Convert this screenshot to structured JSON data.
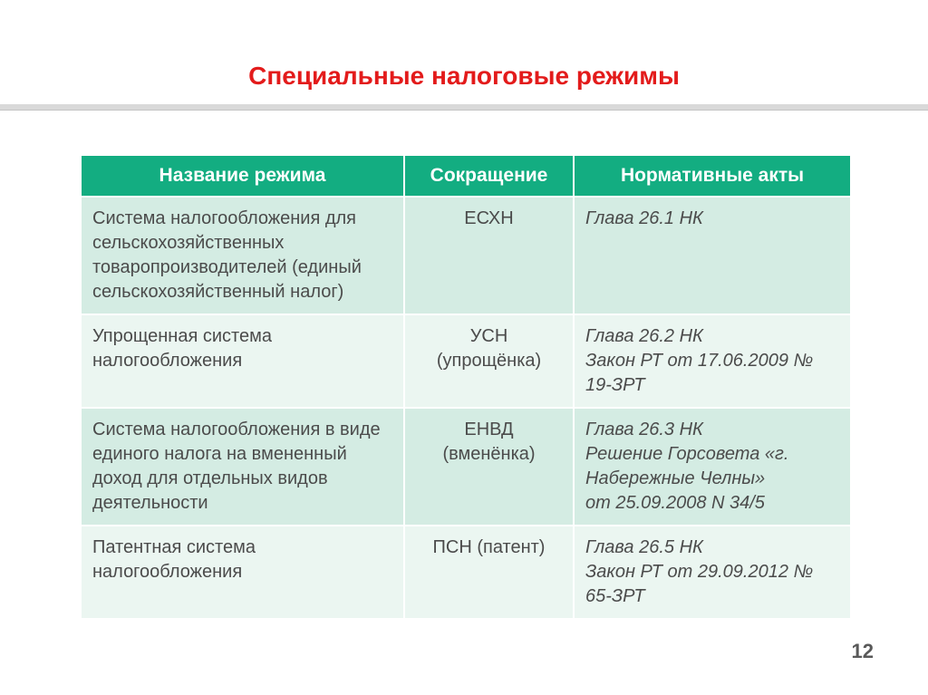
{
  "title": "Специальные налоговые режимы",
  "page_number": "12",
  "table": {
    "header_bg": "#13ad81",
    "row_odd_bg": "#d4ece3",
    "row_even_bg": "#ebf6f1",
    "text_color": "#4b4b4b",
    "columns": [
      "Название режима",
      "Сокращение",
      "Нормативные  акты"
    ],
    "rows": [
      {
        "name": "Система налогообложения для сельскохозяйственных товаропроизводителей (единый сельскохозяйственный налог)",
        "abbr": "ЕСХН",
        "acts": "Глава 26.1 НК"
      },
      {
        "name": "Упрощенная система налогообложения",
        "abbr": "УСН (упрощёнка)",
        "acts": "Глава 26.2 НК\nЗакон РТ от 17.06.2009 № 19-ЗРТ"
      },
      {
        "name": "Система налогообложения в виде единого налога на вмененный доход для отдельных видов деятельности",
        "abbr": "ЕНВД (вменёнка)",
        "acts": "Глава 26.3 НК\nРешение Горсовета «г. Набережные Челны»\nот 25.09.2008 N 34/5"
      },
      {
        "name": "Патентная система налогообложения",
        "abbr": "ПСН (патент)",
        "acts": "Глава 26.5 НК\nЗакон РТ от 29.09.2012 № 65-ЗРТ"
      }
    ]
  }
}
